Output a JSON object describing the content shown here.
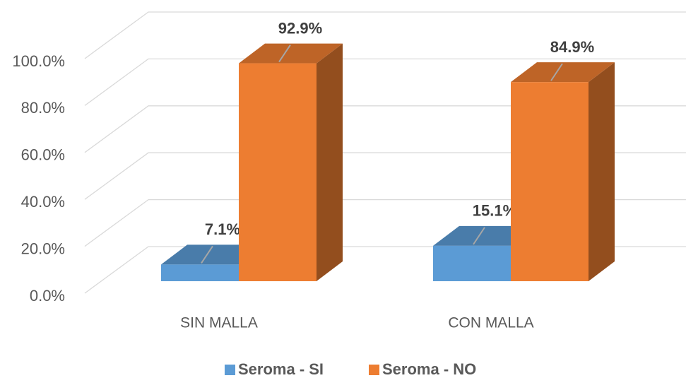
{
  "chart_data": {
    "type": "bar3d",
    "categories": [
      "SIN MALLA",
      "CON MALLA"
    ],
    "series": [
      {
        "name": "Seroma - SI",
        "color": "#5b9bd5",
        "values": [
          7.1,
          15.1
        ],
        "value_labels": [
          "7.1%",
          "15.1%"
        ]
      },
      {
        "name": "Seroma - NO",
        "color": "#ed7d31",
        "values": [
          92.9,
          84.9
        ],
        "value_labels": [
          "92.9%",
          "84.9%"
        ]
      }
    ],
    "ylim": [
      0,
      100
    ],
    "yticks": [
      {
        "value": 0,
        "label": "0.0%"
      },
      {
        "value": 20,
        "label": "20.0%"
      },
      {
        "value": 40,
        "label": "40.0%"
      },
      {
        "value": 60,
        "label": "60.0%"
      },
      {
        "value": 80,
        "label": "80.0%"
      },
      {
        "value": 100,
        "label": "100.0%"
      }
    ],
    "grid": true,
    "legend": "bottom"
  }
}
